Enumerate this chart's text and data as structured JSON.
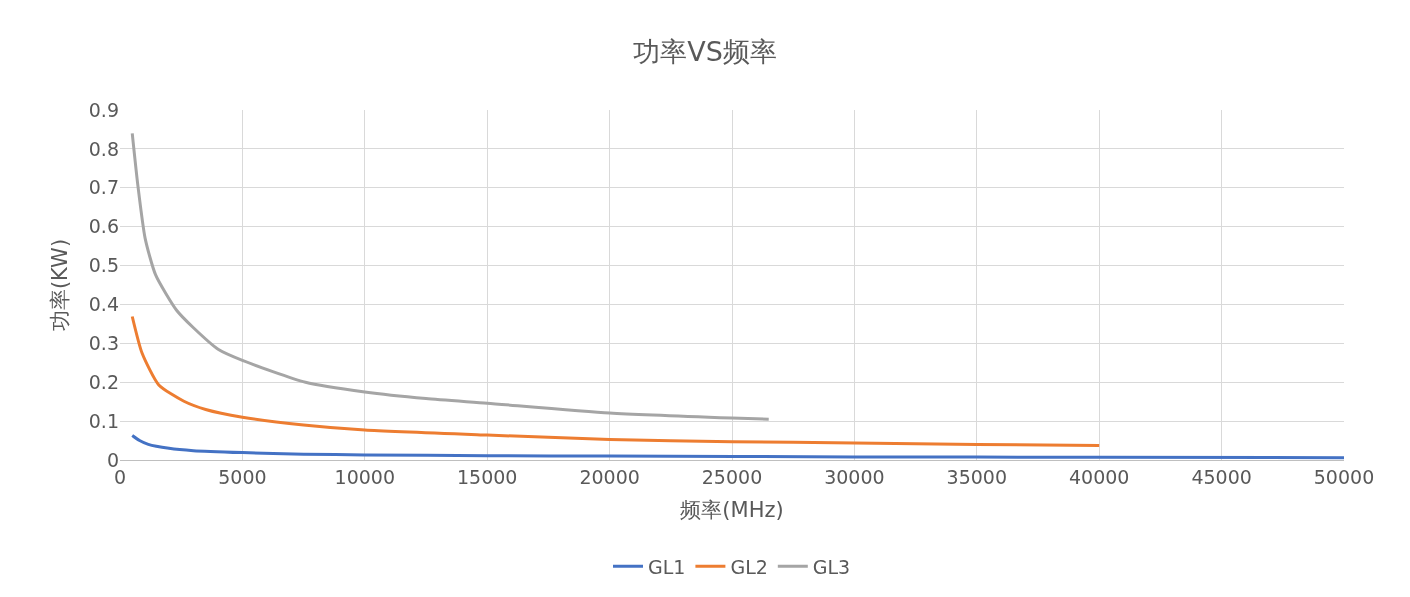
{
  "chart_data": {
    "type": "line",
    "title": "功率VS频率",
    "xlabel": "频率(MHz)",
    "ylabel": "功率(KW)",
    "xlim": [
      0,
      50000
    ],
    "xticks": [
      0,
      5000,
      10000,
      15000,
      20000,
      25000,
      30000,
      35000,
      40000,
      45000,
      50000
    ],
    "ylim": [
      0,
      0.9
    ],
    "yticks": [
      0,
      0.1,
      0.2,
      0.3,
      0.4,
      0.5,
      0.6,
      0.7,
      0.8,
      0.9
    ],
    "grid": true,
    "legend": "bottom",
    "marker": "none",
    "line_style": "solid",
    "series": [
      {
        "name": "GL1",
        "color": "#4472c4",
        "x": [
          500,
          800,
          1156,
          2000,
          3000,
          5000,
          7500,
          10000,
          15000,
          20000,
          30000,
          40000,
          50000
        ],
        "values": [
          0.063,
          0.05,
          0.04,
          0.03,
          0.024,
          0.019,
          0.015,
          0.013,
          0.011,
          0.01,
          0.008,
          0.007,
          0.006
        ]
      },
      {
        "name": "GL2",
        "color": "#ed7d31",
        "x": [
          500,
          900,
          1584,
          2611,
          3500,
          5000,
          7500,
          10000,
          15000,
          20000,
          25000,
          30000,
          35000,
          40000
        ],
        "values": [
          0.369,
          0.275,
          0.193,
          0.151,
          0.13,
          0.11,
          0.09,
          0.077,
          0.064,
          0.053,
          0.047,
          0.044,
          0.04,
          0.037
        ]
      },
      {
        "name": "GL3",
        "color": "#a5a5a5",
        "x": [
          500,
          728,
          1027,
          1455,
          2311,
          3000,
          4024,
          5000,
          7577,
          10000,
          12500,
          15000,
          20000,
          25000,
          26500
        ],
        "values": [
          0.84,
          0.707,
          0.57,
          0.476,
          0.385,
          0.34,
          0.284,
          0.256,
          0.2,
          0.175,
          0.158,
          0.146,
          0.121,
          0.108,
          0.105
        ]
      }
    ]
  }
}
